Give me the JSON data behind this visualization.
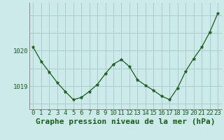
{
  "x": [
    0,
    1,
    2,
    3,
    4,
    5,
    6,
    7,
    8,
    9,
    10,
    11,
    12,
    13,
    14,
    15,
    16,
    17,
    18,
    19,
    20,
    21,
    22,
    23
  ],
  "y": [
    1020.1,
    1019.7,
    1019.4,
    1019.1,
    1018.85,
    1018.62,
    1018.68,
    1018.85,
    1019.05,
    1019.35,
    1019.62,
    1019.75,
    1019.55,
    1019.18,
    1019.02,
    1018.88,
    1018.72,
    1018.62,
    1018.95,
    1019.42,
    1019.78,
    1020.1,
    1020.52,
    1021.05
  ],
  "line_color": "#1a5c1a",
  "marker": "*",
  "marker_color": "#1a5c1a",
  "bg_color": "#cceaea",
  "grid_color": "#aacccc",
  "xlabel": "Graphe pression niveau de la mer (hPa)",
  "xlabel_color": "#1a5c1a",
  "tick_label_color": "#1a5c1a",
  "ylim": [
    1018.35,
    1021.35
  ],
  "xlim": [
    -0.5,
    23.5
  ],
  "yticks": [
    1019,
    1020
  ],
  "xtick_labels": [
    "0",
    "1",
    "2",
    "3",
    "4",
    "5",
    "6",
    "7",
    "8",
    "9",
    "10",
    "11",
    "12",
    "13",
    "14",
    "15",
    "16",
    "17",
    "18",
    "19",
    "20",
    "21",
    "22",
    "23"
  ],
  "title_fontsize": 7.5,
  "tick_fontsize": 6.5,
  "label_fontsize": 8.0
}
